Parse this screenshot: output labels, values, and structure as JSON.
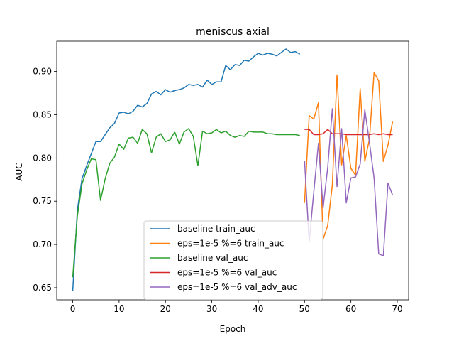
{
  "chart_data": {
    "type": "line",
    "title": "meniscus axial",
    "xlabel": "Epoch",
    "ylabel": "AUC",
    "xlim": [
      -3.45,
      72.45
    ],
    "ylim": [
      0.636,
      0.935
    ],
    "xticks": [
      0,
      10,
      20,
      30,
      40,
      50,
      60,
      70
    ],
    "xtick_labels": [
      "0",
      "10",
      "20",
      "30",
      "40",
      "50",
      "60",
      "70"
    ],
    "yticks": [
      0.65,
      0.7,
      0.75,
      0.8,
      0.85,
      0.9
    ],
    "ytick_labels": [
      "0.65",
      "0.70",
      "0.75",
      "0.80",
      "0.85",
      "0.90"
    ],
    "grid": false,
    "legend_position": "lower-center",
    "series": [
      {
        "name": "baseline train_auc",
        "color": "#1f77b4",
        "x": [
          0,
          1,
          2,
          3,
          4,
          5,
          6,
          7,
          8,
          9,
          10,
          11,
          12,
          13,
          14,
          15,
          16,
          17,
          18,
          19,
          20,
          21,
          22,
          23,
          24,
          25,
          26,
          27,
          28,
          29,
          30,
          31,
          32,
          33,
          34,
          35,
          36,
          37,
          38,
          39,
          40,
          41,
          42,
          43,
          44,
          45,
          46,
          47,
          48,
          49
        ],
        "y": [
          0.646,
          0.74,
          0.776,
          0.791,
          0.805,
          0.819,
          0.819,
          0.827,
          0.835,
          0.84,
          0.852,
          0.853,
          0.851,
          0.854,
          0.861,
          0.859,
          0.863,
          0.874,
          0.877,
          0.873,
          0.879,
          0.876,
          0.878,
          0.879,
          0.881,
          0.885,
          0.884,
          0.885,
          0.882,
          0.89,
          0.885,
          0.888,
          0.888,
          0.907,
          0.902,
          0.908,
          0.907,
          0.913,
          0.912,
          0.917,
          0.921,
          0.919,
          0.921,
          0.92,
          0.918,
          0.922,
          0.926,
          0.922,
          0.923,
          0.92
        ]
      },
      {
        "name": "eps=1e-5 %=6 train_auc",
        "color": "#ff7f0e",
        "x": [
          50,
          51,
          52,
          53,
          54,
          55,
          56,
          57,
          58,
          59,
          60,
          61,
          62,
          63,
          64,
          65,
          66,
          67,
          68,
          69
        ],
        "y": [
          0.748,
          0.849,
          0.845,
          0.864,
          0.706,
          0.722,
          0.769,
          0.896,
          0.792,
          0.826,
          0.788,
          0.78,
          0.88,
          0.796,
          0.822,
          0.899,
          0.889,
          0.796,
          0.815,
          0.842
        ]
      },
      {
        "name": "baseline val_auc",
        "color": "#2ca02c",
        "x": [
          0,
          1,
          2,
          3,
          4,
          5,
          6,
          7,
          8,
          9,
          10,
          11,
          12,
          13,
          14,
          15,
          16,
          17,
          18,
          19,
          20,
          21,
          22,
          23,
          24,
          25,
          26,
          27,
          28,
          29,
          30,
          31,
          32,
          33,
          34,
          35,
          36,
          37,
          38,
          39,
          40,
          41,
          42,
          43,
          44,
          45,
          46,
          47,
          48,
          49
        ],
        "y": [
          0.662,
          0.733,
          0.77,
          0.786,
          0.799,
          0.798,
          0.751,
          0.776,
          0.794,
          0.801,
          0.816,
          0.81,
          0.823,
          0.824,
          0.817,
          0.833,
          0.828,
          0.806,
          0.824,
          0.828,
          0.819,
          0.821,
          0.83,
          0.816,
          0.83,
          0.834,
          0.825,
          0.791,
          0.831,
          0.828,
          0.829,
          0.833,
          0.829,
          0.831,
          0.826,
          0.824,
          0.826,
          0.825,
          0.831,
          0.83,
          0.83,
          0.83,
          0.828,
          0.828,
          0.827,
          0.827,
          0.827,
          0.827,
          0.827,
          0.826
        ]
      },
      {
        "name": "eps=1e-5 %=6 val_auc",
        "color": "#d62728",
        "x": [
          50,
          51,
          52,
          53,
          54,
          55,
          56,
          57,
          58,
          59,
          60,
          61,
          62,
          63,
          64,
          65,
          66,
          67,
          68,
          69
        ],
        "y": [
          0.833,
          0.833,
          0.827,
          0.827,
          0.828,
          0.833,
          0.828,
          0.828,
          0.828,
          0.827,
          0.827,
          0.827,
          0.827,
          0.827,
          0.827,
          0.828,
          0.827,
          0.828,
          0.827,
          0.827
        ]
      },
      {
        "name": "eps=1e-5 %=6 val_adv_auc",
        "color": "#9467bd",
        "x": [
          50,
          51,
          52,
          53,
          54,
          55,
          56,
          57,
          58,
          59,
          60,
          61,
          62,
          63,
          64,
          65,
          66,
          67,
          68,
          69
        ],
        "y": [
          0.797,
          0.703,
          0.761,
          0.817,
          0.742,
          0.789,
          0.857,
          0.767,
          0.834,
          0.748,
          0.777,
          0.778,
          0.793,
          0.856,
          0.818,
          0.777,
          0.689,
          0.687,
          0.771,
          0.757
        ]
      }
    ]
  }
}
